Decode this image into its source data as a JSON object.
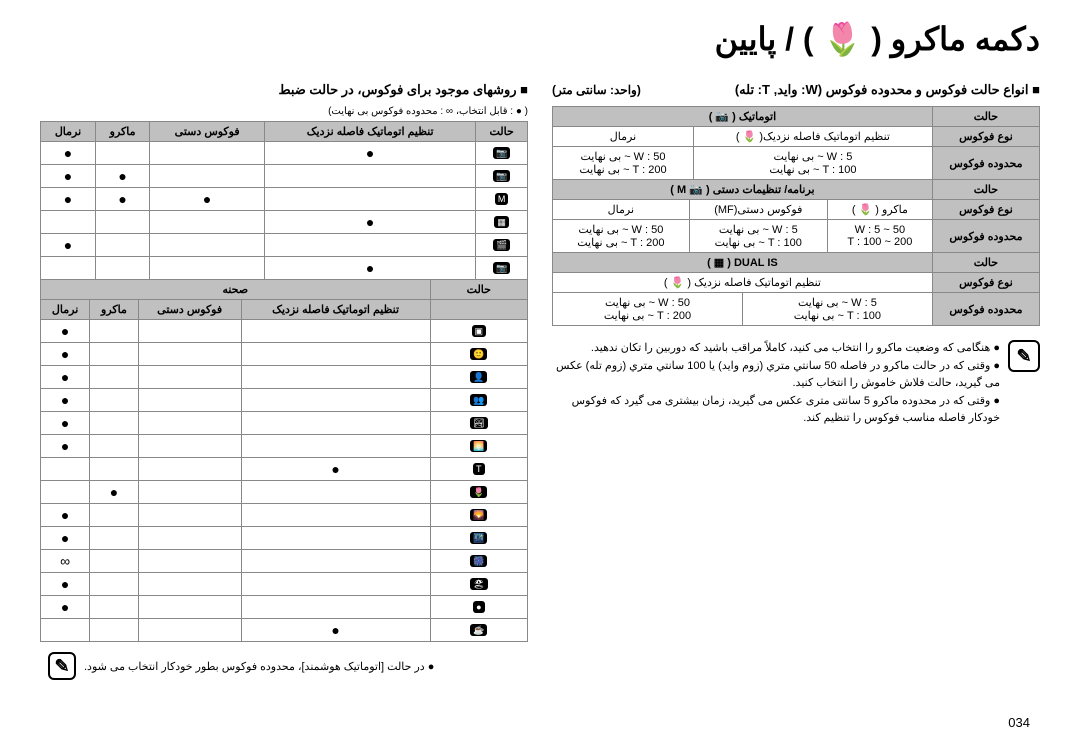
{
  "title": "دکمه ماکرو ( 🌷 ) / پایین",
  "right": {
    "headerRight": "■ انواع حالت فوکوس و محدوده فوکوس (W: واید, T: تله)",
    "headerUnit": "(واحد: سانتی متر)",
    "table1": {
      "headers": [
        "حالت",
        "اتوماتیک ( 📷 )"
      ],
      "rows": [
        {
          "label": "نوع فوکوس",
          "c1": "تنظیم اتوماتیک فاصله نزدیک( 🌷 )",
          "c2": "نرمال",
          "span": true
        },
        {
          "label": "محدوده فوکوس",
          "c1": "W : 5 ~ بی نهایت\nT : 100 ~ بی نهایت",
          "c2": "W : 50 ~ بی نهایت\nT : 200 ~ بی نهایت"
        }
      ]
    },
    "table2": {
      "headers": [
        "حالت",
        "برنامه/ تنظیمات دستی ( 📷 M )"
      ],
      "rows": [
        {
          "label": "نوع فوکوس",
          "c1": "ماکرو ( 🌷 )",
          "c2": "فوکوس دستی(MF)",
          "c3": "نرمال"
        },
        {
          "label": "محدوده فوکوس",
          "c1": "W : 5 ~ 50\nT : 100 ~ 200",
          "c2": "W : 5 ~ بی نهایت\nT : 100 ~ بی نهایت",
          "c3": "W : 50 ~ بی نهایت\nT : 200 ~ بی نهایت"
        }
      ]
    },
    "table3": {
      "headers": [
        "حالت",
        "DUAL IS ( ▦ )"
      ],
      "rows": [
        {
          "label": "نوع فوکوس",
          "c1": "تنظیم اتوماتیک فاصله نزدیک ( 🌷 )",
          "span2": true
        },
        {
          "label": "محدوده فوکوس",
          "c1": "W : 5 ~ بی نهایت\nT : 100 ~ بی نهایت",
          "c2": "W : 50 ~ بی نهایت\nT : 200 ~ بی نهایت"
        }
      ]
    },
    "notes": [
      "هنگامی که وضعیت ماکرو را انتخاب می کنید، کاملاً مراقب باشید که دوربین را تکان ندهید.",
      "وقتی که در حالت ماکرو در فاصله 50 سانتي متري (زوم واید) یا 100 سانتي متري (زوم تله) عکس می گیرید، حالت فلاش خاموش را انتخاب کنید.",
      "وقتی که در محدوده ماکرو 5 سانتی متری عکس می گیرید، زمان بیشتری می گیرد که فوکوس خودکار فاصله مناسب فوکوس را تنظیم کند."
    ]
  },
  "left": {
    "header": "■ روشهای موجود برای فوکوس، در حالت ضبط",
    "legend": "( ● : قابل انتخاب، ∞ : محدوده فوکوس بی نهایت)",
    "tableA": {
      "headers": [
        "حالت",
        "تنظیم اتوماتیک فاصله نزدیک",
        "فوکوس دستی",
        "ماکرو",
        "نرمال"
      ],
      "modes": [
        "📷",
        "📷",
        "M",
        "▦",
        "🎬",
        "📷"
      ],
      "grid": [
        [
          "●",
          "",
          "",
          "●"
        ],
        [
          "",
          "",
          "●",
          "●"
        ],
        [
          "",
          "●",
          "●",
          "●"
        ],
        [
          "●",
          "",
          "",
          ""
        ],
        [
          "",
          "",
          "",
          "●"
        ],
        [
          "●",
          "",
          "",
          ""
        ]
      ]
    },
    "sceneHeader": "صحنه",
    "tableB": {
      "headers": [
        "حالت",
        "تنظیم اتوماتیک فاصله نزدیک",
        "فوکوس دستی",
        "ماکرو",
        "نرمال"
      ],
      "modes": [
        "▣",
        "🙂",
        "👤",
        "👥",
        "🏞",
        "🌅",
        "T",
        "🌷",
        "🌄",
        "🌃",
        "🎆",
        "🏖",
        "●",
        "☕"
      ],
      "grid": [
        [
          "",
          "",
          "",
          "●"
        ],
        [
          "",
          "",
          "",
          "●"
        ],
        [
          "",
          "",
          "",
          "●"
        ],
        [
          "",
          "",
          "",
          "●"
        ],
        [
          "",
          "",
          "",
          "●"
        ],
        [
          "",
          "",
          "",
          "●"
        ],
        [
          "●",
          "",
          "",
          ""
        ],
        [
          "",
          "",
          "●",
          ""
        ],
        [
          "",
          "",
          "",
          "●"
        ],
        [
          "",
          "",
          "",
          "●"
        ],
        [
          "",
          "",
          "",
          "∞"
        ],
        [
          "",
          "",
          "",
          "●"
        ],
        [
          "",
          "",
          "",
          "●"
        ],
        [
          "●",
          "",
          "",
          ""
        ]
      ]
    },
    "bottomNote": "● در حالت [اتوماتیک هوشمند]، محدوده فوکوس بطور خودکار انتخاب می شود."
  },
  "pageNumber": "034"
}
